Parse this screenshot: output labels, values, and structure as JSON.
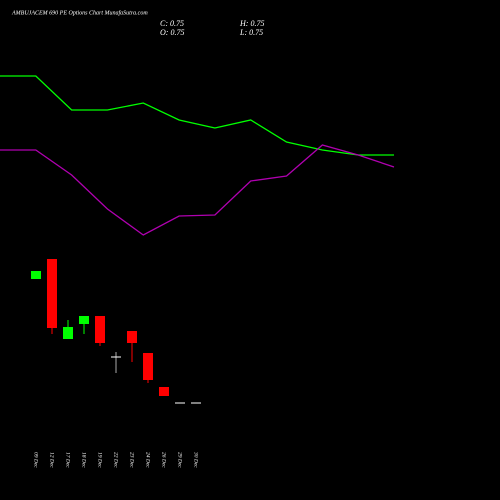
{
  "chart_data": [
    {
      "type": "candlestick",
      "title": "AMBUJACEM 690 PE Options Chart MunafaSutra.com",
      "info": [
        "C: 0.75",
        "H: 0.75",
        "O: 0.75",
        "L: 0.75"
      ],
      "categories": [
        "09 Dec",
        "12 Dec",
        "17 Dec",
        "18 Dec",
        "19 Dec",
        "22 Dec",
        "23 Dec",
        "24 Dec",
        "26 Dec",
        "29 Dec",
        "30 Dec"
      ],
      "open": [
        13.15,
        15.15,
        7.15,
        8.65,
        9.45,
        5.35,
        7.95,
        5.75,
        2.35,
        0.75,
        0.75
      ],
      "high": [
        13.95,
        15.15,
        9.05,
        9.45,
        9.45,
        5.85,
        7.95,
        5.75,
        2.35,
        0.75,
        0.75
      ],
      "low": [
        13.15,
        7.65,
        7.15,
        7.65,
        6.45,
        3.75,
        4.85,
        2.75,
        1.45,
        0.75,
        0.75
      ],
      "close": [
        13.95,
        8.25,
        8.35,
        9.45,
        6.75,
        5.35,
        6.75,
        3.05,
        1.45,
        0.75,
        0.75
      ],
      "up_color": "#00ff00",
      "down_color": "#ff0000",
      "flat_color": "#ffffff",
      "ylim": [
        0,
        25
      ]
    },
    {
      "type": "line",
      "x": [
        0,
        1,
        2,
        3,
        4,
        5,
        6,
        7,
        8,
        9,
        10,
        11
      ],
      "xlim": [
        0,
        11
      ],
      "ylim": [
        0,
        250
      ],
      "series": [
        {
          "color": "#00ff00",
          "values": [
            174,
            174,
            140,
            140,
            147,
            130,
            122,
            130,
            108,
            100,
            95,
            95
          ]
        },
        {
          "color": "#b000b0",
          "values": [
            100,
            100,
            75,
            41,
            15,
            34,
            35,
            69,
            74,
            105,
            95,
            83
          ]
        }
      ]
    }
  ]
}
